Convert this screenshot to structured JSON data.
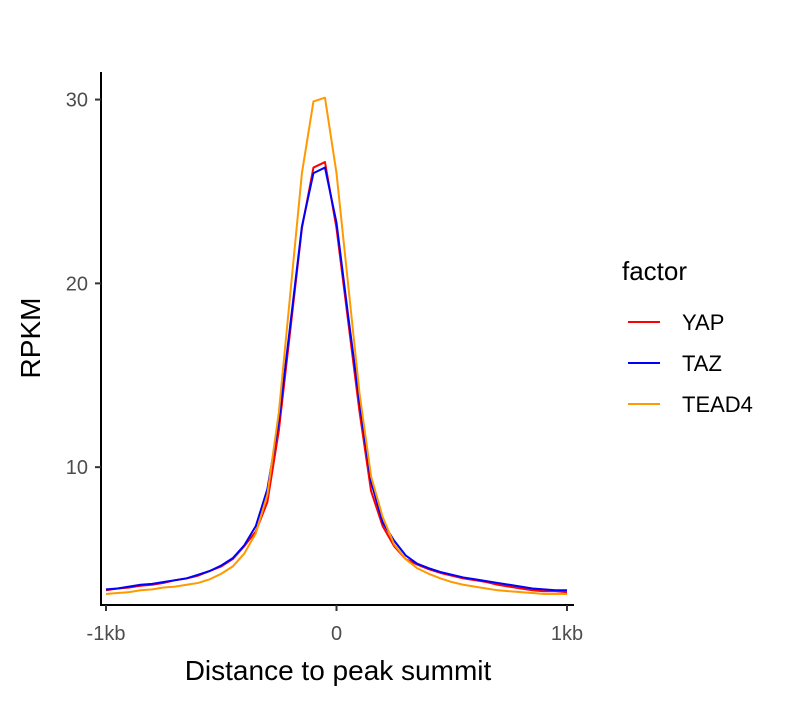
{
  "chart_data": {
    "type": "line",
    "title": "",
    "xlabel": "Distance to peak summit",
    "ylabel": "RPKM",
    "xlim": [
      -1000,
      1000
    ],
    "ylim": [
      2.5,
      31.5
    ],
    "x_ticks": [
      {
        "value": -1000,
        "label": "-1kb"
      },
      {
        "value": 0,
        "label": "0"
      },
      {
        "value": 1000,
        "label": "1kb"
      }
    ],
    "y_ticks": [
      {
        "value": 10,
        "label": "10"
      },
      {
        "value": 20,
        "label": "20"
      },
      {
        "value": 30,
        "label": "30"
      }
    ],
    "grid": false,
    "legend": {
      "title": "factor",
      "position": "right"
    },
    "x": [
      -1000,
      -950,
      -900,
      -850,
      -800,
      -750,
      -700,
      -650,
      -600,
      -550,
      -500,
      -450,
      -400,
      -350,
      -300,
      -250,
      -200,
      -150,
      -100,
      -50,
      0,
      50,
      100,
      150,
      200,
      250,
      300,
      350,
      400,
      450,
      500,
      550,
      600,
      650,
      700,
      750,
      800,
      850,
      900,
      950,
      1000
    ],
    "series": [
      {
        "name": "YAP",
        "color": "#ff0000",
        "values": [
          3.3,
          3.4,
          3.45,
          3.55,
          3.6,
          3.7,
          3.85,
          3.95,
          4.1,
          4.35,
          4.6,
          5.0,
          5.7,
          6.5,
          8.1,
          12.0,
          17.5,
          23.0,
          26.3,
          26.6,
          23.0,
          18.0,
          13.0,
          8.7,
          6.8,
          5.7,
          5.0,
          4.7,
          4.45,
          4.25,
          4.1,
          3.95,
          3.85,
          3.75,
          3.6,
          3.5,
          3.4,
          3.3,
          3.25,
          3.25,
          3.2
        ]
      },
      {
        "name": "TAZ",
        "color": "#0000ff",
        "values": [
          3.35,
          3.4,
          3.5,
          3.6,
          3.65,
          3.75,
          3.85,
          3.95,
          4.15,
          4.35,
          4.65,
          5.05,
          5.75,
          6.8,
          8.8,
          12.5,
          17.8,
          23.1,
          26.0,
          26.3,
          23.3,
          18.3,
          13.5,
          9.2,
          7.0,
          6.0,
          5.2,
          4.75,
          4.5,
          4.3,
          4.15,
          4.0,
          3.9,
          3.8,
          3.7,
          3.6,
          3.5,
          3.4,
          3.35,
          3.3,
          3.3
        ]
      },
      {
        "name": "TEAD4",
        "color": "#ff9900",
        "values": [
          3.1,
          3.15,
          3.2,
          3.3,
          3.35,
          3.45,
          3.5,
          3.6,
          3.7,
          3.9,
          4.2,
          4.6,
          5.3,
          6.4,
          8.5,
          13.0,
          19.5,
          26.0,
          29.9,
          30.1,
          26.0,
          20.0,
          14.0,
          9.5,
          7.3,
          5.8,
          5.0,
          4.5,
          4.2,
          3.95,
          3.75,
          3.6,
          3.5,
          3.4,
          3.3,
          3.25,
          3.2,
          3.15,
          3.1,
          3.1,
          3.1
        ]
      }
    ]
  }
}
